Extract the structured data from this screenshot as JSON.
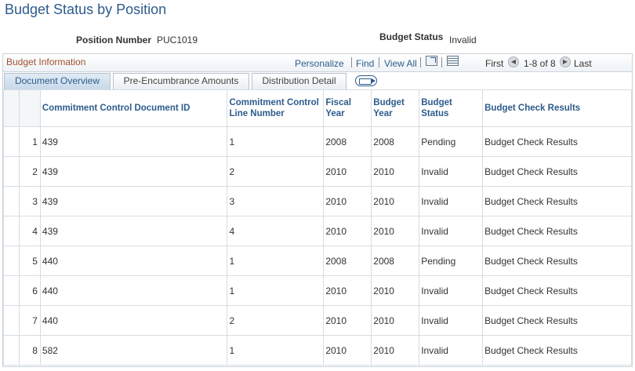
{
  "page": {
    "title": "Budget Status by Position",
    "position_number_label": "Position Number",
    "position_number_value": "PUC1019",
    "budget_status_label": "Budget Status",
    "budget_status_value": "Invalid"
  },
  "grid": {
    "caption": "Budget Information",
    "personalize": "Personalize",
    "find": "Find",
    "view_all": "View All",
    "first": "First",
    "range": "1-8 of 8",
    "last": "Last",
    "tabs": [
      "Document Overview",
      "Pre-Encumbrance Amounts",
      "Distribution Detail"
    ],
    "columns": [
      "Commitment Control Document ID",
      "Commitment Control Line Number",
      "Fiscal Year",
      "Budget Year",
      "Budget Status",
      "Budget Check Results"
    ],
    "rows": [
      {
        "n": "1",
        "doc": "439",
        "line": "1",
        "fy": "2008",
        "by": "2008",
        "status": "Pending",
        "result": "Budget Check Results"
      },
      {
        "n": "2",
        "doc": "439",
        "line": "2",
        "fy": "2010",
        "by": "2010",
        "status": "Invalid",
        "result": "Budget Check Results"
      },
      {
        "n": "3",
        "doc": "439",
        "line": "3",
        "fy": "2010",
        "by": "2010",
        "status": "Invalid",
        "result": "Budget Check Results"
      },
      {
        "n": "4",
        "doc": "439",
        "line": "4",
        "fy": "2010",
        "by": "2010",
        "status": "Invalid",
        "result": "Budget Check Results"
      },
      {
        "n": "5",
        "doc": "440",
        "line": "1",
        "fy": "2008",
        "by": "2008",
        "status": "Pending",
        "result": "Budget Check Results"
      },
      {
        "n": "6",
        "doc": "440",
        "line": "1",
        "fy": "2010",
        "by": "2010",
        "status": "Invalid",
        "result": "Budget Check Results"
      },
      {
        "n": "7",
        "doc": "440",
        "line": "2",
        "fy": "2010",
        "by": "2010",
        "status": "Invalid",
        "result": "Budget Check Results"
      },
      {
        "n": "8",
        "doc": "582",
        "line": "1",
        "fy": "2010",
        "by": "2010",
        "status": "Invalid",
        "result": "Budget Check Results"
      }
    ]
  },
  "colors": {
    "title": "#2d5c8c",
    "caption": "#a0522d",
    "link": "#2d5c8c"
  }
}
